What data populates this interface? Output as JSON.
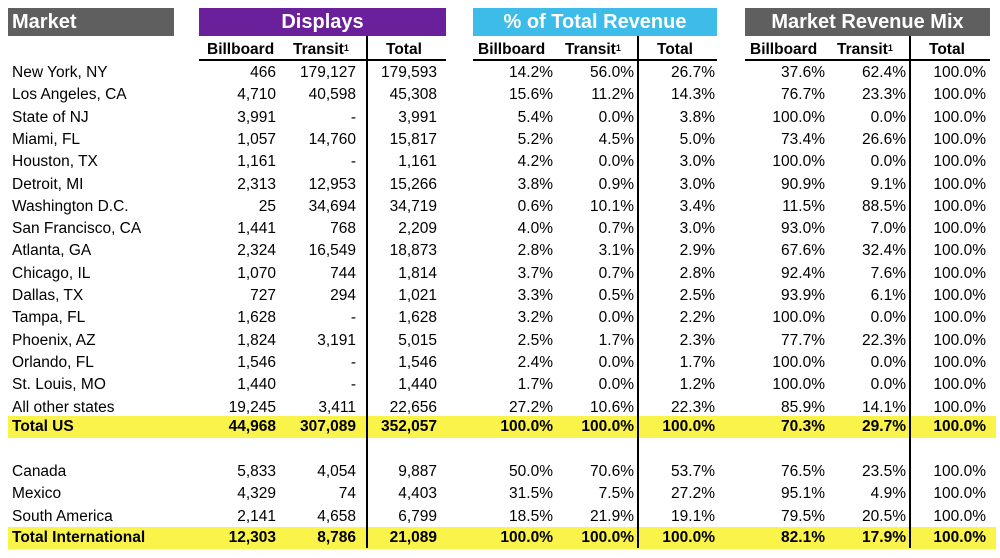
{
  "headers": {
    "market": "Market",
    "displays": "Displays",
    "pct_total_revenue": "% of Total Revenue",
    "market_revenue_mix": "Market Revenue Mix"
  },
  "subheaders": {
    "billboard": "Billboard",
    "transit": "Transit",
    "transit_footnote": "1",
    "total": "Total"
  },
  "colors": {
    "market_header": "#5f5f5f",
    "displays_header": "#6a1f9b",
    "pct_header": "#3dbbe9",
    "mix_header": "#5f5f5f",
    "total_highlight": "#faf34a"
  },
  "us_rows": [
    {
      "market": "New York, NY",
      "vals": [
        "466",
        "179,127",
        "179,593",
        "14.2%",
        "56.0%",
        "26.7%",
        "37.6%",
        "62.4%",
        "100.0%"
      ]
    },
    {
      "market": "Los Angeles, CA",
      "vals": [
        "4,710",
        "40,598",
        "45,308",
        "15.6%",
        "11.2%",
        "14.3%",
        "76.7%",
        "23.3%",
        "100.0%"
      ]
    },
    {
      "market": "State of NJ",
      "vals": [
        "3,991",
        "-",
        "3,991",
        "5.4%",
        "0.0%",
        "3.8%",
        "100.0%",
        "0.0%",
        "100.0%"
      ]
    },
    {
      "market": "Miami, FL",
      "vals": [
        "1,057",
        "14,760",
        "15,817",
        "5.2%",
        "4.5%",
        "5.0%",
        "73.4%",
        "26.6%",
        "100.0%"
      ]
    },
    {
      "market": "Houston, TX",
      "vals": [
        "1,161",
        "-",
        "1,161",
        "4.2%",
        "0.0%",
        "3.0%",
        "100.0%",
        "0.0%",
        "100.0%"
      ]
    },
    {
      "market": "Detroit, MI",
      "vals": [
        "2,313",
        "12,953",
        "15,266",
        "3.8%",
        "0.9%",
        "3.0%",
        "90.9%",
        "9.1%",
        "100.0%"
      ]
    },
    {
      "market": "Washington D.C.",
      "vals": [
        "25",
        "34,694",
        "34,719",
        "0.6%",
        "10.1%",
        "3.4%",
        "11.5%",
        "88.5%",
        "100.0%"
      ]
    },
    {
      "market": "San Francisco, CA",
      "vals": [
        "1,441",
        "768",
        "2,209",
        "4.0%",
        "0.7%",
        "3.0%",
        "93.0%",
        "7.0%",
        "100.0%"
      ]
    },
    {
      "market": "Atlanta, GA",
      "vals": [
        "2,324",
        "16,549",
        "18,873",
        "2.8%",
        "3.1%",
        "2.9%",
        "67.6%",
        "32.4%",
        "100.0%"
      ]
    },
    {
      "market": "Chicago, IL",
      "vals": [
        "1,070",
        "744",
        "1,814",
        "3.7%",
        "0.7%",
        "2.8%",
        "92.4%",
        "7.6%",
        "100.0%"
      ]
    },
    {
      "market": "Dallas, TX",
      "vals": [
        "727",
        "294",
        "1,021",
        "3.3%",
        "0.5%",
        "2.5%",
        "93.9%",
        "6.1%",
        "100.0%"
      ]
    },
    {
      "market": "Tampa, FL",
      "vals": [
        "1,628",
        "-",
        "1,628",
        "3.2%",
        "0.0%",
        "2.2%",
        "100.0%",
        "0.0%",
        "100.0%"
      ]
    },
    {
      "market": "Phoenix, AZ",
      "vals": [
        "1,824",
        "3,191",
        "5,015",
        "2.5%",
        "1.7%",
        "2.3%",
        "77.7%",
        "22.3%",
        "100.0%"
      ]
    },
    {
      "market": "Orlando, FL",
      "vals": [
        "1,546",
        "-",
        "1,546",
        "2.4%",
        "0.0%",
        "1.7%",
        "100.0%",
        "0.0%",
        "100.0%"
      ]
    },
    {
      "market": "St. Louis, MO",
      "vals": [
        "1,440",
        "-",
        "1,440",
        "1.7%",
        "0.0%",
        "1.2%",
        "100.0%",
        "0.0%",
        "100.0%"
      ]
    },
    {
      "market": "All other states",
      "vals": [
        "19,245",
        "3,411",
        "22,656",
        "27.2%",
        "10.6%",
        "22.3%",
        "85.9%",
        "14.1%",
        "100.0%"
      ]
    }
  ],
  "total_us": {
    "market": "Total US",
    "vals": [
      "44,968",
      "307,089",
      "352,057",
      "100.0%",
      "100.0%",
      "100.0%",
      "70.3%",
      "29.7%",
      "100.0%"
    ]
  },
  "intl_rows": [
    {
      "market": "Canada",
      "vals": [
        "5,833",
        "4,054",
        "9,887",
        "50.0%",
        "70.6%",
        "53.7%",
        "76.5%",
        "23.5%",
        "100.0%"
      ]
    },
    {
      "market": "Mexico",
      "vals": [
        "4,329",
        "74",
        "4,403",
        "31.5%",
        "7.5%",
        "27.2%",
        "95.1%",
        "4.9%",
        "100.0%"
      ]
    },
    {
      "market": "South America",
      "vals": [
        "2,141",
        "4,658",
        "6,799",
        "18.5%",
        "21.9%",
        "19.1%",
        "79.5%",
        "20.5%",
        "100.0%"
      ]
    }
  ],
  "total_international": {
    "market": "Total International",
    "vals": [
      "12,303",
      "8,786",
      "21,089",
      "100.0%",
      "100.0%",
      "100.0%",
      "82.1%",
      "17.9%",
      "100.0%"
    ]
  }
}
